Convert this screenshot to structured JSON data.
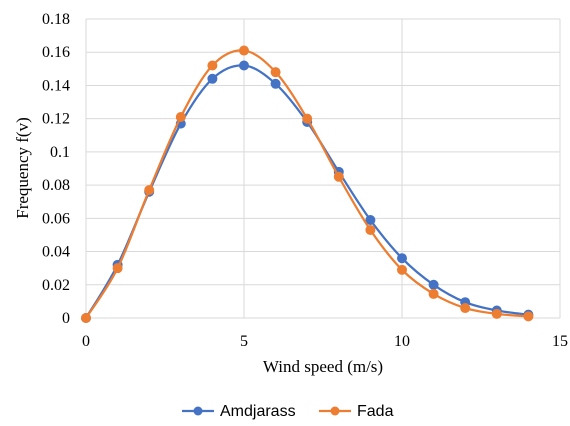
{
  "chart_data": {
    "type": "line",
    "xlabel": "Wind speed (m/s)",
    "ylabel": "Frequency f(v)",
    "xlim": [
      0,
      15
    ],
    "ylim": [
      0,
      0.18
    ],
    "x_ticks": [
      "0",
      "5",
      "10",
      "15"
    ],
    "y_ticks": [
      "0",
      "0.02",
      "0.04",
      "0.06",
      "0.08",
      "0.1",
      "0.12",
      "0.14",
      "0.16",
      "0.18"
    ],
    "grid": "on",
    "legend_position": "bottom",
    "x": [
      0,
      1,
      2,
      3,
      4,
      5,
      6,
      7,
      8,
      9,
      10,
      11,
      12,
      13,
      14
    ],
    "series": [
      {
        "name": "Amdjarass",
        "color": "#4472c4",
        "values": [
          0,
          0.032,
          0.076,
          0.117,
          0.144,
          0.152,
          0.141,
          0.118,
          0.088,
          0.059,
          0.036,
          0.02,
          0.0095,
          0.0045,
          0.002
        ]
      },
      {
        "name": "Fada",
        "color": "#ed7d31",
        "values": [
          0,
          0.03,
          0.077,
          0.121,
          0.152,
          0.161,
          0.148,
          0.12,
          0.085,
          0.053,
          0.029,
          0.0145,
          0.006,
          0.0025,
          0.001
        ]
      }
    ]
  }
}
